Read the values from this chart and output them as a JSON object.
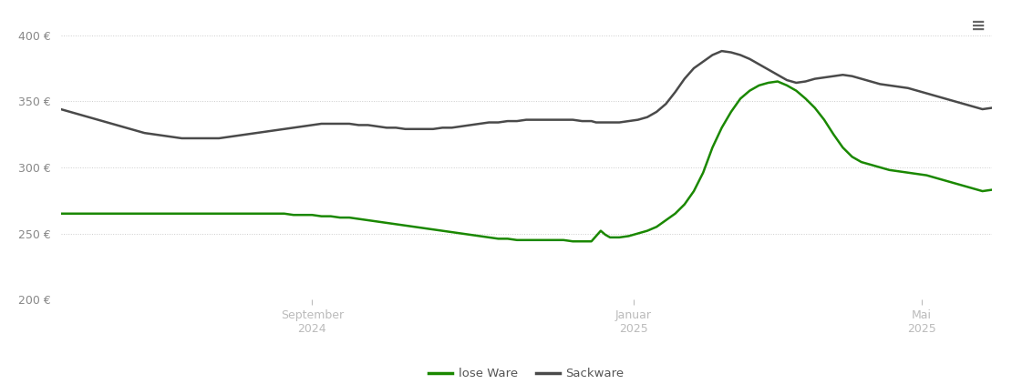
{
  "background_color": "#ffffff",
  "line_green_color": "#1a8800",
  "line_gray_color": "#4a4a4a",
  "ylim": [
    200,
    415
  ],
  "yticks": [
    200,
    250,
    300,
    350,
    400
  ],
  "legend_labels": [
    "lose Ware",
    "Sackware"
  ],
  "green_x": [
    0.0,
    0.01,
    0.02,
    0.03,
    0.04,
    0.05,
    0.06,
    0.07,
    0.08,
    0.09,
    0.1,
    0.11,
    0.12,
    0.13,
    0.14,
    0.15,
    0.16,
    0.17,
    0.18,
    0.19,
    0.2,
    0.21,
    0.22,
    0.23,
    0.24,
    0.25,
    0.26,
    0.27,
    0.28,
    0.29,
    0.3,
    0.31,
    0.32,
    0.33,
    0.34,
    0.35,
    0.36,
    0.37,
    0.38,
    0.39,
    0.4,
    0.41,
    0.42,
    0.43,
    0.44,
    0.45,
    0.46,
    0.47,
    0.48,
    0.49,
    0.5,
    0.51,
    0.52,
    0.53,
    0.54,
    0.55,
    0.56,
    0.565,
    0.57,
    0.575,
    0.58,
    0.585,
    0.59,
    0.6,
    0.61,
    0.62,
    0.63,
    0.64,
    0.65,
    0.66,
    0.67,
    0.68,
    0.69,
    0.7,
    0.71,
    0.72,
    0.73,
    0.74,
    0.75,
    0.76,
    0.77,
    0.78,
    0.79,
    0.8,
    0.81,
    0.82,
    0.83,
    0.84,
    0.85,
    0.86,
    0.87,
    0.88,
    0.89,
    0.9,
    0.91,
    0.92,
    0.93,
    0.94,
    0.95,
    0.96,
    0.97,
    0.98,
    0.99,
    1.0
  ],
  "green_y": [
    265,
    265,
    265,
    265,
    265,
    265,
    265,
    265,
    265,
    265,
    265,
    265,
    265,
    265,
    265,
    265,
    265,
    265,
    265,
    265,
    265,
    265,
    265,
    265,
    265,
    264,
    264,
    264,
    263,
    263,
    262,
    262,
    261,
    260,
    259,
    258,
    257,
    256,
    255,
    254,
    253,
    252,
    251,
    250,
    249,
    248,
    247,
    246,
    246,
    245,
    245,
    245,
    245,
    245,
    245,
    244,
    244,
    244,
    244,
    248,
    252,
    249,
    247,
    247,
    248,
    250,
    252,
    255,
    260,
    265,
    272,
    282,
    296,
    315,
    330,
    342,
    352,
    358,
    362,
    364,
    365,
    362,
    358,
    352,
    345,
    336,
    325,
    315,
    308,
    304,
    302,
    300,
    298,
    297,
    296,
    295,
    294,
    292,
    290,
    288,
    286,
    284,
    282,
    283
  ],
  "gray_x": [
    0.0,
    0.01,
    0.02,
    0.03,
    0.04,
    0.05,
    0.06,
    0.07,
    0.08,
    0.09,
    0.1,
    0.11,
    0.12,
    0.13,
    0.14,
    0.15,
    0.16,
    0.17,
    0.18,
    0.19,
    0.2,
    0.21,
    0.22,
    0.23,
    0.24,
    0.25,
    0.26,
    0.27,
    0.28,
    0.29,
    0.3,
    0.31,
    0.32,
    0.33,
    0.34,
    0.35,
    0.36,
    0.37,
    0.38,
    0.39,
    0.4,
    0.41,
    0.42,
    0.43,
    0.44,
    0.45,
    0.46,
    0.47,
    0.48,
    0.49,
    0.5,
    0.51,
    0.52,
    0.53,
    0.54,
    0.55,
    0.56,
    0.565,
    0.57,
    0.575,
    0.58,
    0.585,
    0.59,
    0.6,
    0.61,
    0.62,
    0.63,
    0.64,
    0.65,
    0.66,
    0.67,
    0.68,
    0.69,
    0.7,
    0.71,
    0.72,
    0.73,
    0.74,
    0.75,
    0.76,
    0.77,
    0.78,
    0.79,
    0.8,
    0.81,
    0.82,
    0.83,
    0.84,
    0.85,
    0.86,
    0.87,
    0.88,
    0.89,
    0.9,
    0.91,
    0.92,
    0.93,
    0.94,
    0.95,
    0.96,
    0.97,
    0.98,
    0.99,
    1.0
  ],
  "gray_y": [
    344,
    342,
    340,
    338,
    336,
    334,
    332,
    330,
    328,
    326,
    325,
    324,
    323,
    322,
    322,
    322,
    322,
    322,
    323,
    324,
    325,
    326,
    327,
    328,
    329,
    330,
    331,
    332,
    333,
    333,
    333,
    333,
    332,
    332,
    331,
    330,
    330,
    329,
    329,
    329,
    329,
    330,
    330,
    331,
    332,
    333,
    334,
    334,
    335,
    335,
    336,
    336,
    336,
    336,
    336,
    336,
    335,
    335,
    335,
    334,
    334,
    334,
    334,
    334,
    335,
    336,
    338,
    342,
    348,
    357,
    367,
    375,
    380,
    385,
    388,
    387,
    385,
    382,
    378,
    374,
    370,
    366,
    364,
    365,
    367,
    368,
    369,
    370,
    369,
    367,
    365,
    363,
    362,
    361,
    360,
    358,
    356,
    354,
    352,
    350,
    348,
    346,
    344,
    345
  ],
  "xtick_positions": [
    0.27,
    0.615,
    0.925
  ],
  "xtick_labels": [
    "September\n2024",
    "Januar\n2025",
    "Mai\n2025"
  ]
}
